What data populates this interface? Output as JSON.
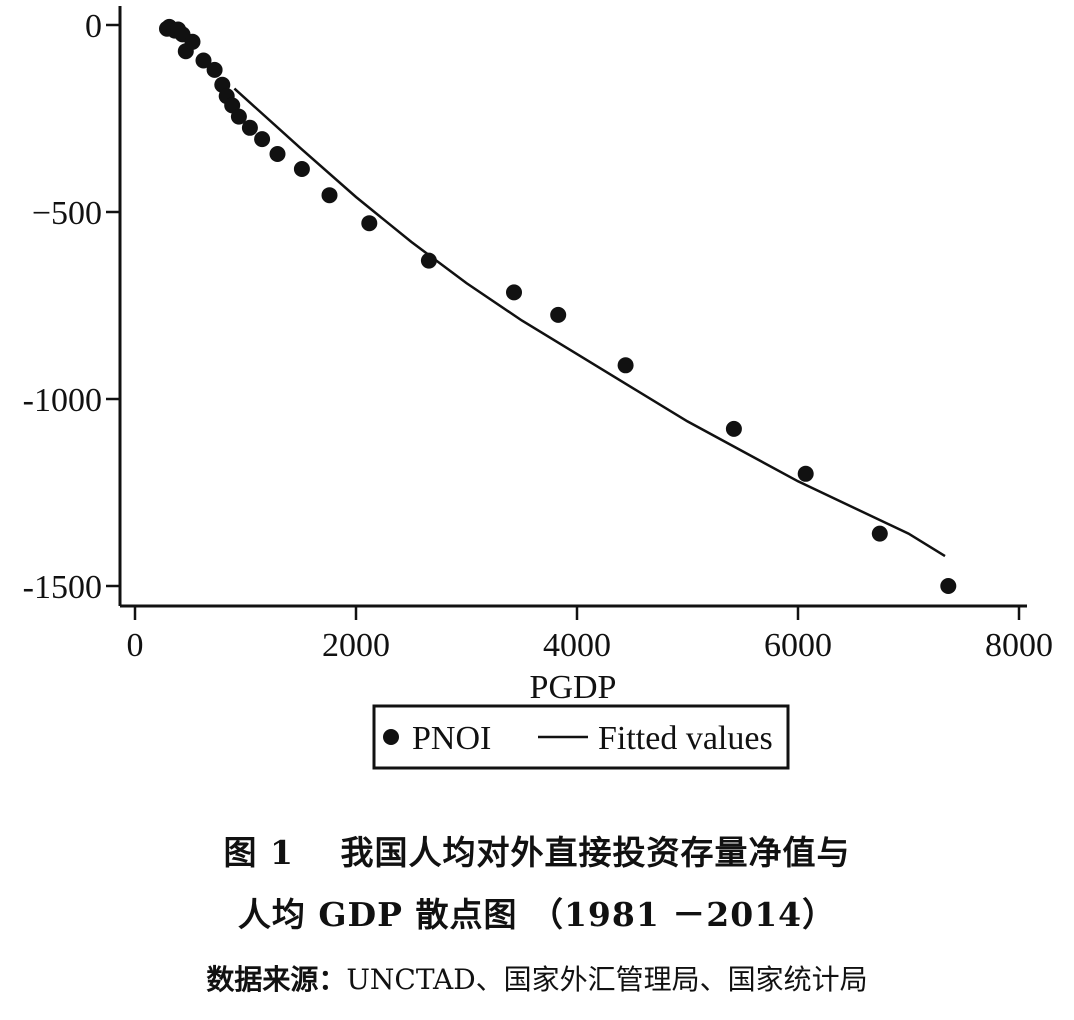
{
  "chart_data": {
    "type": "scatter",
    "title": "",
    "xlabel": "PGDP",
    "ylabel": "",
    "xlim": [
      -100,
      8150
    ],
    "ylim": [
      -1550,
      50
    ],
    "x_ticks": [
      0,
      2000,
      4000,
      6000,
      8000
    ],
    "x_tick_labels": [
      "0",
      "2000",
      "4000",
      "6000",
      "8000"
    ],
    "y_ticks": [
      0,
      -500,
      -1000,
      -1500
    ],
    "y_tick_labels": [
      "0",
      "−500",
      "-1000",
      "-1500"
    ],
    "grid": false,
    "legend_position": "bottom-center",
    "series": [
      {
        "name": "PNOI",
        "kind": "scatter",
        "color": "#111111",
        "x": [
          290,
          310,
          360,
          390,
          430,
          460,
          520,
          620,
          720,
          790,
          830,
          880,
          940,
          1040,
          1150,
          1290,
          1510,
          1760,
          2120,
          2660,
          3430,
          3830,
          4440,
          5420,
          6070,
          6740,
          7360
        ],
        "y": [
          -10,
          -5,
          -15,
          -12,
          -25,
          -70,
          -45,
          -95,
          -120,
          -160,
          -190,
          -215,
          -245,
          -275,
          -305,
          -345,
          -385,
          -455,
          -530,
          -630,
          -715,
          -775,
          -910,
          -1080,
          -1200,
          -1360,
          -1500
        ]
      },
      {
        "name": "Fitted values",
        "kind": "line",
        "color": "#111111",
        "x": [
          900,
          1500,
          2000,
          2500,
          3000,
          3500,
          4000,
          4500,
          5000,
          5500,
          6000,
          6500,
          7000,
          7330
        ],
        "y": [
          -170,
          -330,
          -460,
          -580,
          -690,
          -790,
          -880,
          -970,
          -1060,
          -1140,
          -1220,
          -1290,
          -1360,
          -1420
        ]
      }
    ]
  },
  "caption": {
    "line1": "图 1　 我国人均对外直接投资存量净值与",
    "line2": "人均 GDP 散点图 （1981 －2014）"
  },
  "source": {
    "label": "数据来源：",
    "text": "UNCTAD、国家外汇管理局、国家统计局"
  }
}
